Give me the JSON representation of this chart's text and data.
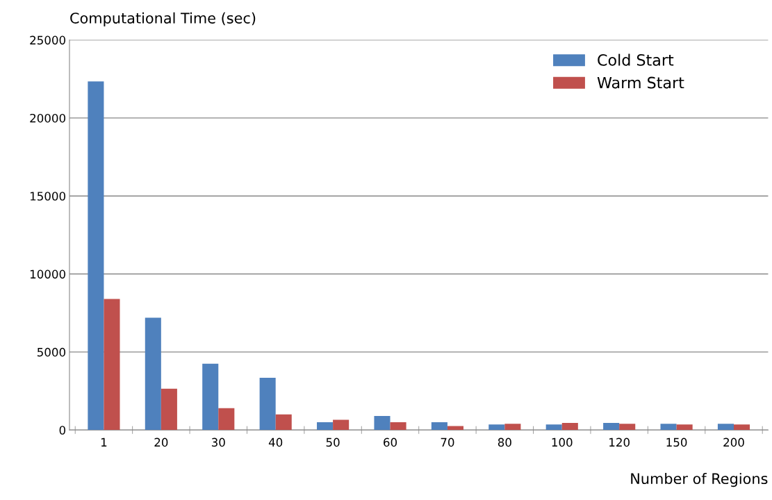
{
  "chart_data": {
    "type": "bar",
    "ylabel": "Computational Time (sec)",
    "xlabel": "Number of Regions",
    "categories": [
      "1",
      "20",
      "30",
      "40",
      "50",
      "60",
      "70",
      "80",
      "100",
      "120",
      "150",
      "200"
    ],
    "series": [
      {
        "name": "Cold Start",
        "color": "#4f81bd",
        "values": [
          22350,
          7200,
          4250,
          3350,
          500,
          900,
          500,
          350,
          350,
          450,
          400,
          400
        ]
      },
      {
        "name": "Warm Start",
        "color": "#c0504d",
        "values": [
          8400,
          2650,
          1400,
          1000,
          650,
          500,
          250,
          400,
          450,
          400,
          350,
          350
        ]
      }
    ],
    "ylim": [
      0,
      25000
    ],
    "yticks": [
      0,
      5000,
      10000,
      15000,
      20000,
      25000
    ],
    "grid": "y",
    "legend": "top right"
  }
}
